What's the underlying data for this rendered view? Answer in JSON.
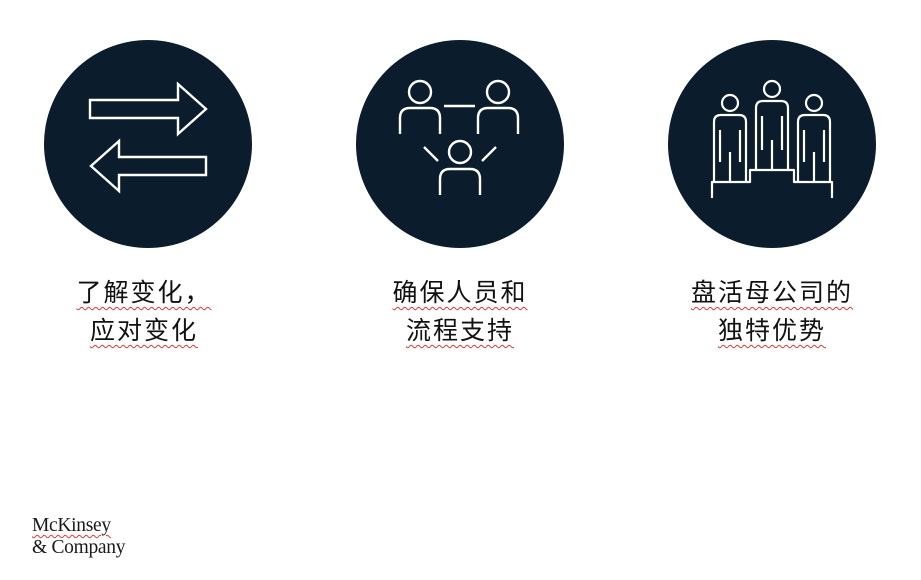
{
  "colors": {
    "circle": "#0b1c2c",
    "icon_stroke": "#ffffff",
    "text": "#111111",
    "spell_underline": "#d23b3b"
  },
  "items": [
    {
      "icon": "exchange-arrows-icon",
      "line1": "了解变化，",
      "line2": "应对变化"
    },
    {
      "icon": "people-network-icon",
      "line1": "确保人员和",
      "line2": "流程支持"
    },
    {
      "icon": "podium-people-icon",
      "line1": "盘活母公司的",
      "line2": "独特优势"
    }
  ],
  "logo": {
    "line1": "McKinsey",
    "line2": "& Company"
  }
}
